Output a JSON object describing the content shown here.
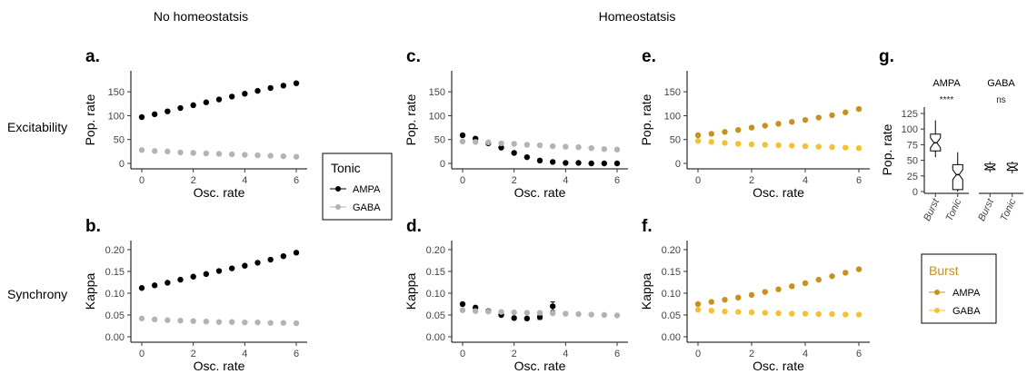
{
  "headers": {
    "no_homeostasis": "No homeostatsis",
    "homeostasis": "Homeostatsis"
  },
  "row_labels": {
    "top": "Excitability",
    "bottom": "Synchrony"
  },
  "colors": {
    "tonic_ampa": "#000000",
    "tonic_gaba": "#b3b3b3",
    "burst_ampa": "#c8901c",
    "burst_gaba": "#f5c131"
  },
  "legends": {
    "tonic": {
      "title": "Tonic",
      "items": [
        "AMPA",
        "GABA"
      ]
    },
    "burst": {
      "title": "Burst",
      "items": [
        "AMPA",
        "GABA"
      ]
    }
  },
  "chart_data": [
    {
      "panel": "a.",
      "type": "scatter",
      "xlabel": "Osc. rate",
      "ylabel": "Pop. rate",
      "xlim": [
        0,
        6
      ],
      "ylim": [
        0,
        175
      ],
      "xticks": [
        "0",
        "2",
        "4",
        "6"
      ],
      "yticks": [
        "0",
        "50",
        "100",
        "150"
      ],
      "x": [
        0,
        0.5,
        1,
        1.5,
        2,
        2.5,
        3,
        3.5,
        4,
        4.5,
        5,
        5.5,
        6
      ],
      "series": [
        {
          "name": "AMPA",
          "color_key": "tonic_ampa",
          "values": [
            97,
            103,
            109,
            116,
            122,
            128,
            134,
            140,
            146,
            152,
            158,
            163,
            168
          ]
        },
        {
          "name": "GABA",
          "color_key": "tonic_gaba",
          "values": [
            28,
            26,
            25,
            23,
            22,
            21,
            20,
            19,
            18,
            17,
            16,
            15,
            14
          ]
        }
      ]
    },
    {
      "panel": "b.",
      "type": "scatter",
      "xlabel": "Osc. rate",
      "ylabel": "Kappa",
      "xlim": [
        0,
        6
      ],
      "ylim": [
        0,
        0.2
      ],
      "xticks": [
        "0",
        "2",
        "4",
        "6"
      ],
      "yticks": [
        "0.00",
        "0.05",
        "0.10",
        "0.15",
        "0.20"
      ],
      "x": [
        0,
        0.5,
        1,
        1.5,
        2,
        2.5,
        3,
        3.5,
        4,
        4.5,
        5,
        5.5,
        6
      ],
      "series": [
        {
          "name": "AMPA",
          "color_key": "tonic_ampa",
          "values": [
            0.112,
            0.118,
            0.124,
            0.131,
            0.138,
            0.144,
            0.151,
            0.157,
            0.163,
            0.17,
            0.177,
            0.185,
            0.193
          ]
        },
        {
          "name": "GABA",
          "color_key": "tonic_gaba",
          "values": [
            0.042,
            0.04,
            0.038,
            0.037,
            0.036,
            0.035,
            0.034,
            0.034,
            0.033,
            0.033,
            0.032,
            0.032,
            0.031
          ]
        }
      ]
    },
    {
      "panel": "c.",
      "type": "scatter",
      "xlabel": "Osc. rate",
      "ylabel": "Pop. rate",
      "xlim": [
        0,
        6
      ],
      "ylim": [
        0,
        175
      ],
      "xticks": [
        "0",
        "2",
        "4",
        "6"
      ],
      "yticks": [
        "0",
        "50",
        "100",
        "150"
      ],
      "x": [
        0,
        0.5,
        1,
        1.5,
        2,
        2.5,
        3,
        3.5,
        4,
        4.5,
        5,
        5.5,
        6
      ],
      "series": [
        {
          "name": "AMPA",
          "color_key": "tonic_ampa",
          "values": [
            59,
            52,
            42,
            33,
            22,
            13,
            6,
            3,
            1,
            1,
            0,
            0,
            0
          ]
        },
        {
          "name": "GABA",
          "color_key": "tonic_gaba",
          "values": [
            46,
            45,
            44,
            42,
            41,
            39,
            38,
            36,
            35,
            34,
            32,
            30,
            29
          ]
        }
      ]
    },
    {
      "panel": "d.",
      "type": "scatter",
      "xlabel": "Osc. rate",
      "ylabel": "Kappa",
      "xlim": [
        0,
        6
      ],
      "ylim": [
        0,
        0.2
      ],
      "xticks": [
        "0",
        "2",
        "4",
        "6"
      ],
      "yticks": [
        "0.00",
        "0.05",
        "0.10",
        "0.15",
        "0.20"
      ],
      "x": [
        0,
        0.5,
        1,
        1.5,
        2,
        2.5,
        3,
        3.5,
        4,
        4.5,
        5,
        5.5,
        6
      ],
      "series": [
        {
          "name": "AMPA",
          "color_key": "tonic_ampa",
          "values": [
            0.075,
            0.067,
            0.059,
            0.05,
            0.043,
            0.042,
            0.045,
            0.07,
            null,
            null,
            null,
            null,
            null
          ],
          "errors": [
            0,
            0,
            0.003,
            0,
            0.003,
            0.003,
            0.005,
            0.01,
            0,
            0,
            0,
            0,
            0
          ]
        },
        {
          "name": "GABA",
          "color_key": "tonic_gaba",
          "values": [
            0.061,
            0.059,
            0.058,
            0.057,
            0.056,
            0.055,
            0.055,
            0.054,
            0.053,
            0.052,
            0.051,
            0.05,
            0.049
          ]
        }
      ]
    },
    {
      "panel": "e.",
      "type": "scatter",
      "xlabel": "Osc. rate",
      "ylabel": "Pop. rate",
      "xlim": [
        0,
        6
      ],
      "ylim": [
        0,
        175
      ],
      "xticks": [
        "0",
        "2",
        "4",
        "6"
      ],
      "yticks": [
        "0",
        "50",
        "100",
        "150"
      ],
      "x": [
        0,
        0.5,
        1,
        1.5,
        2,
        2.5,
        3,
        3.5,
        4,
        4.5,
        5,
        5.5,
        6
      ],
      "series": [
        {
          "name": "AMPA",
          "color_key": "burst_ampa",
          "values": [
            59,
            62,
            66,
            70,
            75,
            79,
            83,
            87,
            91,
            96,
            101,
            107,
            114
          ]
        },
        {
          "name": "GABA",
          "color_key": "burst_gaba",
          "values": [
            47,
            45,
            43,
            41,
            40,
            39,
            38,
            37,
            36,
            35,
            34,
            33,
            32
          ]
        }
      ]
    },
    {
      "panel": "f.",
      "type": "scatter",
      "xlabel": "Osc. rate",
      "ylabel": "Kappa",
      "xlim": [
        0,
        6
      ],
      "ylim": [
        0,
        0.2
      ],
      "xticks": [
        "0",
        "2",
        "4",
        "6"
      ],
      "yticks": [
        "0.00",
        "0.05",
        "0.10",
        "0.15",
        "0.20"
      ],
      "x": [
        0,
        0.5,
        1,
        1.5,
        2,
        2.5,
        3,
        3.5,
        4,
        4.5,
        5,
        5.5,
        6
      ],
      "series": [
        {
          "name": "AMPA",
          "color_key": "burst_ampa",
          "values": [
            0.075,
            0.08,
            0.085,
            0.09,
            0.096,
            0.103,
            0.109,
            0.116,
            0.123,
            0.131,
            0.139,
            0.147,
            0.155
          ]
        },
        {
          "name": "GABA",
          "color_key": "burst_gaba",
          "values": [
            0.062,
            0.06,
            0.058,
            0.057,
            0.056,
            0.055,
            0.054,
            0.053,
            0.053,
            0.052,
            0.052,
            0.051,
            0.051
          ]
        }
      ]
    },
    {
      "panel": "g.",
      "type": "box",
      "ylabel": "Pop. rate",
      "ylim": [
        0,
        125
      ],
      "yticks": [
        "0",
        "25",
        "50",
        "75",
        "100",
        "125"
      ],
      "facets": [
        {
          "title": "AMPA",
          "significance": "****",
          "categories": [
            "Burst",
            "Tonic"
          ],
          "boxes": [
            {
              "name": "Burst",
              "min": 55,
              "q1": 65,
              "median": 78,
              "q3": 92,
              "max": 114
            },
            {
              "name": "Tonic",
              "min": 0,
              "q1": 3,
              "median": 27,
              "q3": 43,
              "max": 63
            }
          ]
        },
        {
          "title": "GABA",
          "significance": "ns",
          "categories": [
            "Burst",
            "Tonic"
          ],
          "boxes": [
            {
              "name": "Burst",
              "min": 31,
              "q1": 35,
              "median": 39,
              "q3": 44,
              "max": 48
            },
            {
              "name": "Tonic",
              "min": 29,
              "q1": 34,
              "median": 39,
              "q3": 45,
              "max": 48
            }
          ]
        }
      ]
    }
  ]
}
